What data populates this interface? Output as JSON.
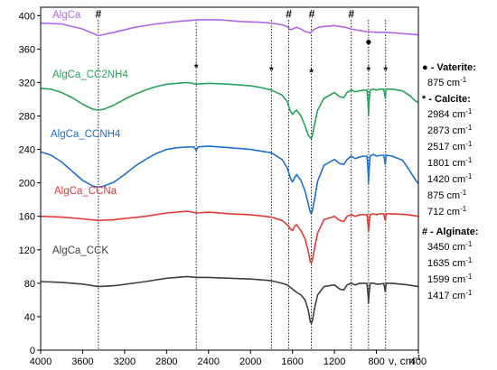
{
  "chart_data": {
    "type": "line",
    "title": "",
    "xlabel": "ν, cm",
    "xlabel_sup": "-1",
    "ylabel": "",
    "xlim": [
      4000,
      400
    ],
    "ylim": [
      0,
      410
    ],
    "x_reversed": true,
    "x_ticks": [
      4000,
      3600,
      3200,
      2800,
      2400,
      2000,
      1600,
      1200,
      800,
      400
    ],
    "y_ticks": [
      0,
      40,
      80,
      120,
      160,
      200,
      240,
      280,
      320,
      360,
      400
    ],
    "grid": false,
    "series": [
      {
        "name": "AlgCa_CCK",
        "color": "#3f3f3f",
        "points": [
          [
            4000,
            82
          ],
          [
            3800,
            81
          ],
          [
            3600,
            79
          ],
          [
            3450,
            76
          ],
          [
            3300,
            77
          ],
          [
            3000,
            82
          ],
          [
            2800,
            86
          ],
          [
            2600,
            88
          ],
          [
            2517,
            87
          ],
          [
            2400,
            87
          ],
          [
            2200,
            86
          ],
          [
            2000,
            85
          ],
          [
            1900,
            84
          ],
          [
            1801,
            83
          ],
          [
            1700,
            80
          ],
          [
            1650,
            78
          ],
          [
            1600,
            73
          ],
          [
            1560,
            69
          ],
          [
            1520,
            66
          ],
          [
            1480,
            60
          ],
          [
            1450,
            48
          ],
          [
            1430,
            34
          ],
          [
            1420,
            32
          ],
          [
            1410,
            35
          ],
          [
            1390,
            50
          ],
          [
            1360,
            66
          ],
          [
            1300,
            76
          ],
          [
            1200,
            78
          ],
          [
            1150,
            73
          ],
          [
            1110,
            72
          ],
          [
            1080,
            78
          ],
          [
            1040,
            80
          ],
          [
            1000,
            78
          ],
          [
            960,
            80
          ],
          [
            920,
            80
          ],
          [
            890,
            80
          ],
          [
            880,
            66
          ],
          [
            875,
            57
          ],
          [
            870,
            66
          ],
          [
            860,
            80
          ],
          [
            830,
            80
          ],
          [
            800,
            79
          ],
          [
            760,
            79
          ],
          [
            730,
            80
          ],
          [
            715,
            70
          ],
          [
            712,
            73
          ],
          [
            708,
            80
          ],
          [
            650,
            80
          ],
          [
            500,
            78
          ],
          [
            400,
            76
          ]
        ]
      },
      {
        "name": "AlgCa_CCNa",
        "color": "#e53935",
        "points": [
          [
            4000,
            160
          ],
          [
            3800,
            159
          ],
          [
            3600,
            157
          ],
          [
            3450,
            155
          ],
          [
            3300,
            156
          ],
          [
            3000,
            160
          ],
          [
            2800,
            164
          ],
          [
            2600,
            166
          ],
          [
            2517,
            164
          ],
          [
            2400,
            165
          ],
          [
            2200,
            163
          ],
          [
            2000,
            162
          ],
          [
            1801,
            159
          ],
          [
            1700,
            155
          ],
          [
            1650,
            150
          ],
          [
            1620,
            145
          ],
          [
            1600,
            143
          ],
          [
            1580,
            148
          ],
          [
            1560,
            150
          ],
          [
            1520,
            143
          ],
          [
            1480,
            133
          ],
          [
            1450,
            118
          ],
          [
            1430,
            106
          ],
          [
            1420,
            104
          ],
          [
            1410,
            108
          ],
          [
            1390,
            122
          ],
          [
            1360,
            140
          ],
          [
            1300,
            156
          ],
          [
            1200,
            160
          ],
          [
            1150,
            155
          ],
          [
            1110,
            154
          ],
          [
            1080,
            160
          ],
          [
            1040,
            162
          ],
          [
            1000,
            160
          ],
          [
            960,
            162
          ],
          [
            920,
            162
          ],
          [
            890,
            162
          ],
          [
            880,
            150
          ],
          [
            875,
            142
          ],
          [
            870,
            150
          ],
          [
            860,
            162
          ],
          [
            830,
            163
          ],
          [
            800,
            162
          ],
          [
            760,
            163
          ],
          [
            730,
            163
          ],
          [
            715,
            155
          ],
          [
            712,
            158
          ],
          [
            708,
            163
          ],
          [
            650,
            163
          ],
          [
            500,
            162
          ],
          [
            400,
            160
          ]
        ]
      },
      {
        "name": "AlgCa_CCNH4",
        "color": "#1e6fd6",
        "points": [
          [
            4000,
            237
          ],
          [
            3900,
            233
          ],
          [
            3800,
            225
          ],
          [
            3700,
            214
          ],
          [
            3600,
            203
          ],
          [
            3500,
            196
          ],
          [
            3450,
            195
          ],
          [
            3400,
            196
          ],
          [
            3300,
            201
          ],
          [
            3200,
            210
          ],
          [
            3100,
            220
          ],
          [
            3000,
            228
          ],
          [
            2900,
            235
          ],
          [
            2800,
            240
          ],
          [
            2700,
            242
          ],
          [
            2600,
            243
          ],
          [
            2540,
            243
          ],
          [
            2517,
            239
          ],
          [
            2500,
            243
          ],
          [
            2400,
            244
          ],
          [
            2200,
            242
          ],
          [
            2000,
            240
          ],
          [
            1900,
            238
          ],
          [
            1801,
            236
          ],
          [
            1700,
            228
          ],
          [
            1650,
            218
          ],
          [
            1620,
            206
          ],
          [
            1600,
            201
          ],
          [
            1580,
            206
          ],
          [
            1560,
            210
          ],
          [
            1520,
            203
          ],
          [
            1480,
            190
          ],
          [
            1450,
            175
          ],
          [
            1430,
            165
          ],
          [
            1420,
            163
          ],
          [
            1410,
            167
          ],
          [
            1390,
            180
          ],
          [
            1360,
            202
          ],
          [
            1300,
            221
          ],
          [
            1200,
            228
          ],
          [
            1150,
            223
          ],
          [
            1110,
            222
          ],
          [
            1080,
            228
          ],
          [
            1040,
            232
          ],
          [
            1000,
            229
          ],
          [
            960,
            231
          ],
          [
            920,
            232
          ],
          [
            890,
            232
          ],
          [
            880,
            215
          ],
          [
            875,
            200
          ],
          [
            870,
            215
          ],
          [
            860,
            232
          ],
          [
            830,
            234
          ],
          [
            800,
            232
          ],
          [
            760,
            233
          ],
          [
            730,
            233
          ],
          [
            715,
            222
          ],
          [
            712,
            227
          ],
          [
            708,
            233
          ],
          [
            650,
            232
          ],
          [
            550,
            227
          ],
          [
            480,
            214
          ],
          [
            430,
            204
          ],
          [
            400,
            199
          ]
        ]
      },
      {
        "name": "AlgCa_CC2NH4",
        "color": "#27a35a",
        "points": [
          [
            4000,
            313
          ],
          [
            3900,
            312
          ],
          [
            3800,
            308
          ],
          [
            3700,
            302
          ],
          [
            3600,
            294
          ],
          [
            3500,
            288
          ],
          [
            3450,
            287
          ],
          [
            3400,
            288
          ],
          [
            3300,
            293
          ],
          [
            3200,
            300
          ],
          [
            3100,
            306
          ],
          [
            3000,
            311
          ],
          [
            2900,
            315
          ],
          [
            2800,
            318
          ],
          [
            2700,
            319
          ],
          [
            2600,
            320
          ],
          [
            2517,
            318
          ],
          [
            2400,
            319
          ],
          [
            2200,
            318
          ],
          [
            2000,
            316
          ],
          [
            1900,
            314
          ],
          [
            1801,
            311
          ],
          [
            1700,
            305
          ],
          [
            1650,
            297
          ],
          [
            1620,
            286
          ],
          [
            1600,
            282
          ],
          [
            1580,
            285
          ],
          [
            1560,
            287
          ],
          [
            1520,
            280
          ],
          [
            1480,
            268
          ],
          [
            1450,
            257
          ],
          [
            1430,
            254
          ],
          [
            1420,
            253
          ],
          [
            1410,
            257
          ],
          [
            1390,
            270
          ],
          [
            1360,
            287
          ],
          [
            1300,
            301
          ],
          [
            1200,
            308
          ],
          [
            1150,
            303
          ],
          [
            1110,
            302
          ],
          [
            1080,
            308
          ],
          [
            1040,
            311
          ],
          [
            1000,
            309
          ],
          [
            960,
            310
          ],
          [
            920,
            311
          ],
          [
            890,
            311
          ],
          [
            880,
            296
          ],
          [
            875,
            281
          ],
          [
            870,
            296
          ],
          [
            860,
            311
          ],
          [
            830,
            312
          ],
          [
            800,
            311
          ],
          [
            760,
            312
          ],
          [
            730,
            312
          ],
          [
            715,
            301
          ],
          [
            712,
            306
          ],
          [
            708,
            312
          ],
          [
            650,
            312
          ],
          [
            550,
            310
          ],
          [
            480,
            304
          ],
          [
            430,
            298
          ],
          [
            400,
            296
          ]
        ]
      },
      {
        "name": "AlgCa",
        "color": "#b266e6",
        "points": [
          [
            4000,
            391
          ],
          [
            3800,
            390
          ],
          [
            3600,
            384
          ],
          [
            3450,
            376
          ],
          [
            3300,
            380
          ],
          [
            3100,
            386
          ],
          [
            2900,
            390
          ],
          [
            2700,
            393
          ],
          [
            2500,
            395
          ],
          [
            2300,
            395
          ],
          [
            2100,
            393
          ],
          [
            1900,
            392
          ],
          [
            1800,
            391
          ],
          [
            1700,
            389
          ],
          [
            1650,
            387
          ],
          [
            1620,
            383
          ],
          [
            1600,
            384
          ],
          [
            1580,
            385
          ],
          [
            1560,
            386
          ],
          [
            1520,
            384
          ],
          [
            1480,
            381
          ],
          [
            1450,
            380
          ],
          [
            1430,
            379
          ],
          [
            1417,
            381
          ],
          [
            1400,
            383
          ],
          [
            1350,
            386
          ],
          [
            1300,
            387
          ],
          [
            1200,
            388
          ],
          [
            1100,
            386
          ],
          [
            1040,
            384
          ],
          [
            1000,
            383
          ],
          [
            950,
            382
          ],
          [
            900,
            381
          ],
          [
            800,
            380
          ],
          [
            700,
            380
          ],
          [
            600,
            379
          ],
          [
            500,
            378
          ],
          [
            400,
            377
          ]
        ]
      }
    ],
    "series_labels": {
      "AlgCa": "AlgCa",
      "AlgCa_CC2NH4": "AlgCa_CC2NH4",
      "AlgCa_CCNH4": "AlgCa_CCNH4",
      "AlgCa_CCNa": "AlgCa_CCNa",
      "AlgCa_CCK": "AlgCa_CCK"
    },
    "reference_lines": [
      3450,
      2517,
      1801,
      1635,
      1420,
      1040,
      875,
      712
    ],
    "markers": [
      {
        "x": 3450,
        "y": 402,
        "symbol": "#"
      },
      {
        "x": 2517,
        "y": 344,
        "symbol": "*"
      },
      {
        "x": 1801,
        "y": 341,
        "symbol": "*"
      },
      {
        "x": 1635,
        "y": 402,
        "symbol": "#"
      },
      {
        "x": 1417,
        "y": 402,
        "symbol": "#"
      },
      {
        "x": 1420,
        "y": 338,
        "symbol": "*"
      },
      {
        "x": 1040,
        "y": 402,
        "symbol": "#"
      },
      {
        "x": 875,
        "y": 369,
        "symbol": "●"
      },
      {
        "x": 875,
        "y": 341,
        "symbol": "*"
      },
      {
        "x": 712,
        "y": 341,
        "symbol": "*"
      }
    ],
    "legend": {
      "vaterite_head": "● - Vaterite:",
      "vaterite_values": [
        "875 cm"
      ],
      "calcite_head": "* - Calcite:",
      "calcite_values": [
        "2984 cm",
        "2873 cm",
        "2517 cm",
        "1801 cm",
        "1420 cm",
        "875 cm",
        "712 cm"
      ],
      "alginate_head": "# - Alginate:",
      "alginate_values": [
        "3450 cm",
        "1635 cm",
        "1599 cm",
        "1417 cm"
      ],
      "unit_sup": "-1"
    }
  }
}
